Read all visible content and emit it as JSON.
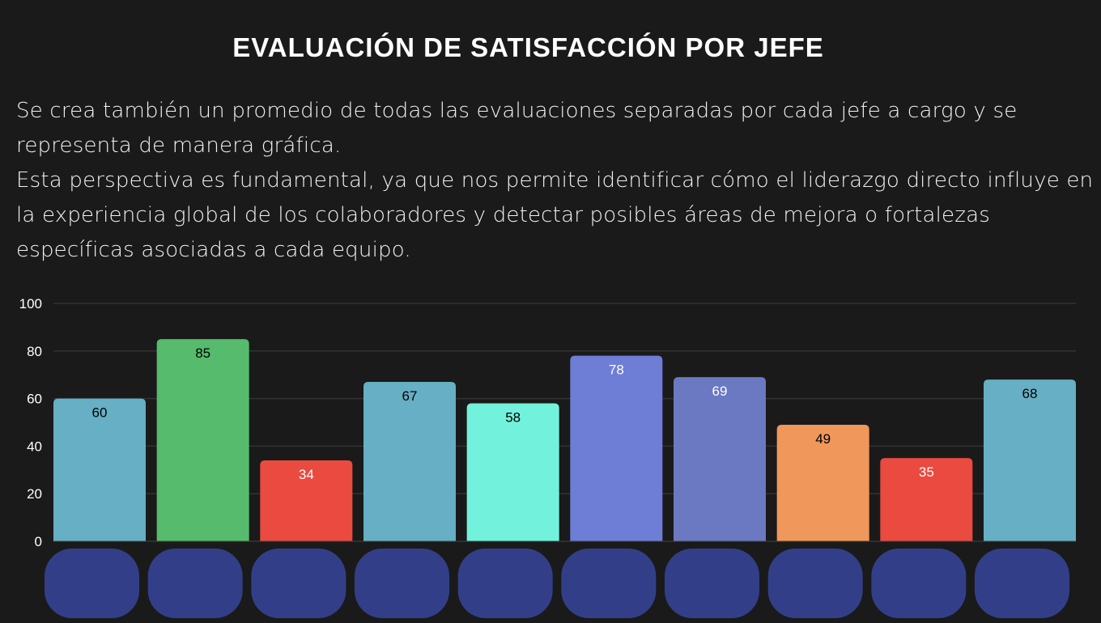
{
  "header": {
    "title": "EVALUACIÓN DE SATISFACCIÓN POR JEFE"
  },
  "description": {
    "p1": "Se crea también un promedio de todas las evaluaciones separadas por cada jefe a cargo y se representa de manera gráfica.",
    "p2": "Esta perspectiva es fundamental, ya que nos permite identificar cómo el liderazgo directo influye en la experiencia global de los colaboradores y detectar posibles áreas de mejora o fortalezas específicas asociadas a cada equipo."
  },
  "chart_data": {
    "type": "bar",
    "title": "",
    "xlabel": "",
    "ylabel": "",
    "ylim": [
      0,
      100
    ],
    "yticks": [
      "0",
      "20",
      "40",
      "60",
      "80",
      "100"
    ],
    "grid": true,
    "values": [
      60,
      85,
      34,
      67,
      58,
      78,
      69,
      49,
      35,
      68
    ],
    "colors": [
      "#66afc4",
      "#56bb6c",
      "#ea4a40",
      "#66afc4",
      "#72f2dc",
      "#6e7dd6",
      "#6b78c2",
      "#f0975c",
      "#ea4a40",
      "#66afc4"
    ],
    "label_colors": [
      "#000000",
      "#000000",
      "#ffffff",
      "#000000",
      "#000000",
      "#ffffff",
      "#ffffff",
      "#000000",
      "#ffffff",
      "#000000"
    ],
    "category_labels_redacted_color": "#323f88"
  }
}
